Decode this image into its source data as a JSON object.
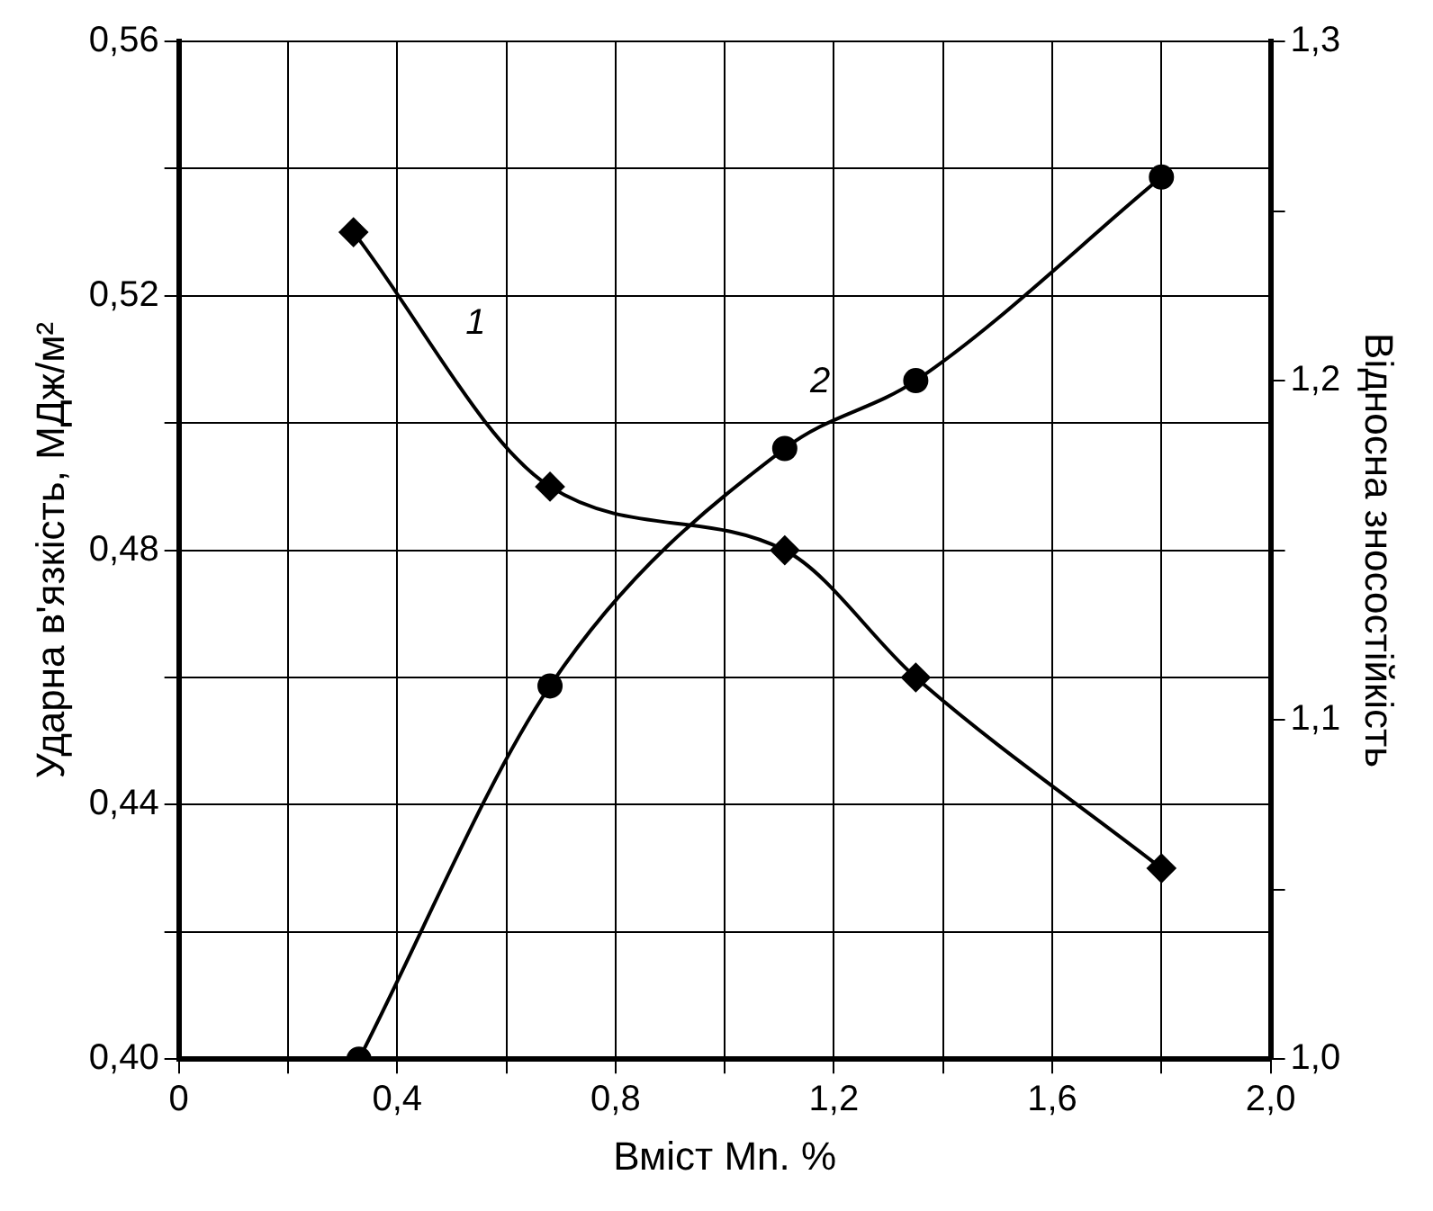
{
  "chart_data": {
    "type": "line",
    "xlabel": "Вміст Mn. %",
    "ylabel": "Ударна в'язкість, МДж/м²",
    "y2label": "Відносна зносостійкість",
    "xlim": [
      0,
      2.0
    ],
    "xticks": [
      {
        "value": 0,
        "label": "0"
      },
      {
        "value": 0.2,
        "label": null
      },
      {
        "value": 0.4,
        "label": "0,4"
      },
      {
        "value": 0.6,
        "label": null
      },
      {
        "value": 0.8,
        "label": "0,8"
      },
      {
        "value": 1.0,
        "label": null
      },
      {
        "value": 1.2,
        "label": "1,2"
      },
      {
        "value": 1.4,
        "label": null
      },
      {
        "value": 1.6,
        "label": "1,6"
      },
      {
        "value": 1.8,
        "label": null
      },
      {
        "value": 2.0,
        "label": "2,0"
      }
    ],
    "ylim": [
      0.4,
      0.56
    ],
    "yticks": [
      {
        "value": 0.4,
        "label": "0,40"
      },
      {
        "value": 0.42,
        "label": null
      },
      {
        "value": 0.44,
        "label": "0,44"
      },
      {
        "value": 0.46,
        "label": null
      },
      {
        "value": 0.48,
        "label": "0,48"
      },
      {
        "value": 0.5,
        "label": null
      },
      {
        "value": 0.52,
        "label": "0,52"
      },
      {
        "value": 0.54,
        "label": null
      },
      {
        "value": 0.56,
        "label": "0,56"
      }
    ],
    "y2lim": [
      1.0,
      1.3
    ],
    "y2ticks": [
      {
        "value": 1.0,
        "label": "1,0"
      },
      {
        "value": 1.05,
        "label": null
      },
      {
        "value": 1.1,
        "label": "1,1"
      },
      {
        "value": 1.15,
        "label": null
      },
      {
        "value": 1.2,
        "label": "1,2"
      },
      {
        "value": 1.25,
        "label": null
      },
      {
        "value": 1.3,
        "label": "1,3"
      }
    ],
    "grid": true,
    "legend": false,
    "line_style": "solid",
    "series": [
      {
        "name": "1",
        "color": "#000000",
        "marker": "diamond",
        "x": [
          0.32,
          0.68,
          1.11,
          1.35,
          1.8
        ],
        "values": [
          0.53,
          0.49,
          0.48,
          0.46,
          0.43
        ]
      },
      {
        "name": "2",
        "color": "#000000",
        "marker": "circle",
        "axis": "y2",
        "x": [
          0.33,
          0.68,
          1.11,
          1.35,
          1.8
        ],
        "values": [
          1.0,
          1.11,
          1.18,
          1.2,
          1.26
        ]
      }
    ]
  }
}
